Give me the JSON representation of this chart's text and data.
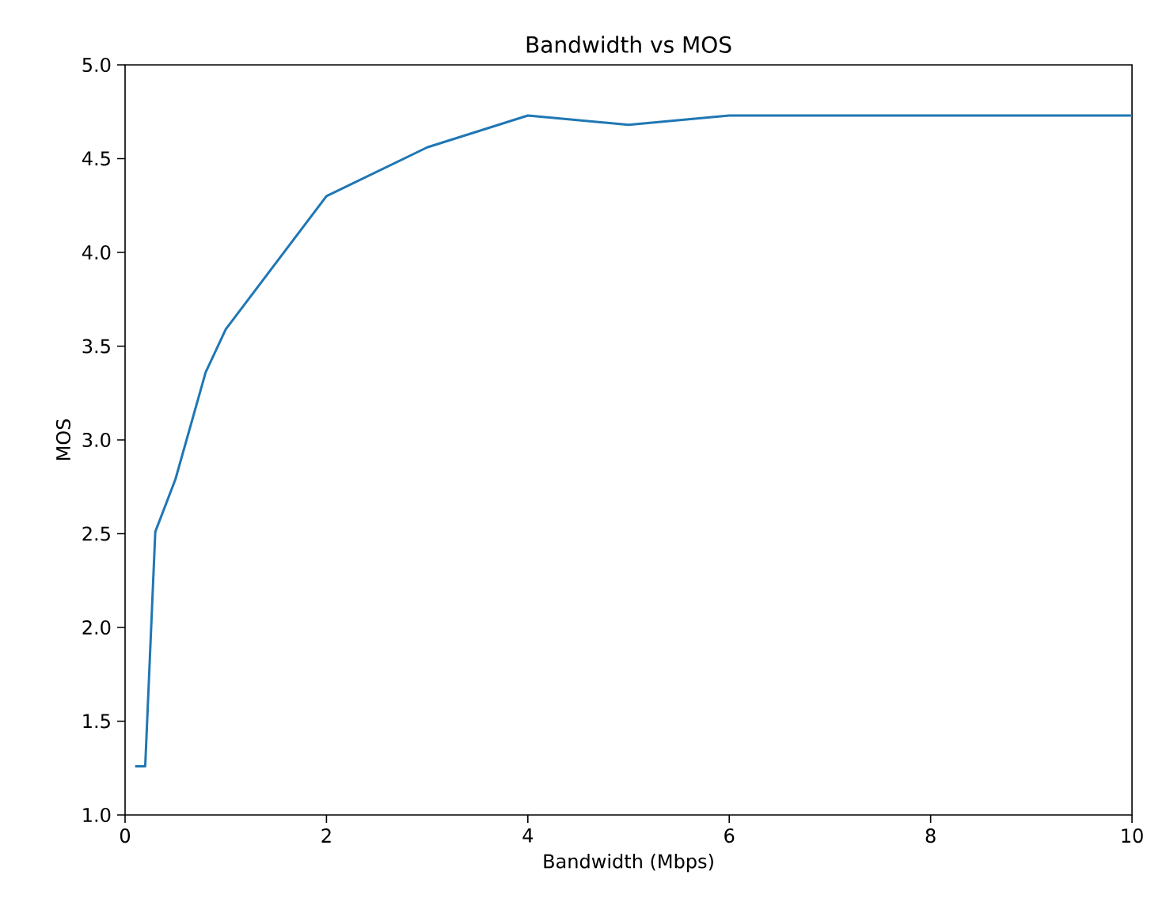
{
  "chart_data": {
    "type": "line",
    "title": "Bandwidth vs MOS",
    "xlabel": "Bandwidth (Mbps)",
    "ylabel": "MOS",
    "x": [
      0.1,
      0.2,
      0.3,
      0.5,
      0.8,
      1,
      2,
      3,
      4,
      5,
      6,
      8,
      10
    ],
    "series": [
      {
        "color": "#1f77b4",
        "values": [
          1.26,
          1.26,
          2.51,
          2.79,
          3.36,
          3.59,
          4.3,
          4.56,
          4.73,
          4.68,
          4.73,
          4.73,
          4.73
        ]
      }
    ],
    "xlim": [
      0,
      10
    ],
    "ylim": [
      1,
      5
    ],
    "xticks": [
      0,
      2,
      4,
      6,
      8,
      10
    ],
    "yticks": [
      {
        "value": 1,
        "label": "1.0"
      },
      {
        "value": 1.5,
        "label": "1.5"
      },
      {
        "value": 2,
        "label": "2.0"
      },
      {
        "value": 2.5,
        "label": "2.5"
      },
      {
        "value": 3,
        "label": "3.0"
      },
      {
        "value": 3.5,
        "label": "3.5"
      },
      {
        "value": 4,
        "label": "4.0"
      },
      {
        "value": 4.5,
        "label": "4.5"
      },
      {
        "value": 5,
        "label": "5.0"
      }
    ],
    "marker": "none",
    "line_style": "solid"
  }
}
